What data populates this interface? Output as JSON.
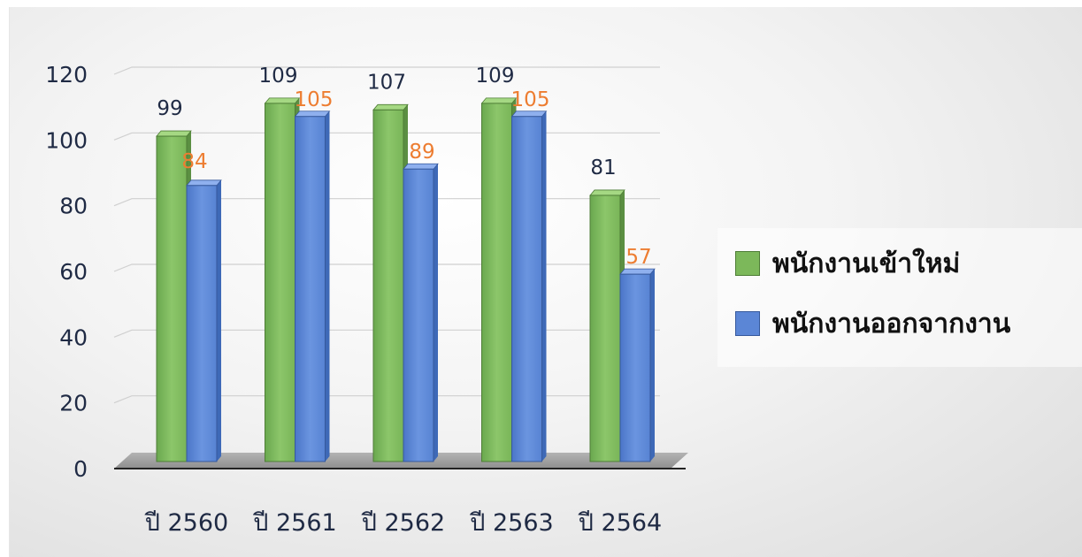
{
  "chart_data": {
    "type": "bar",
    "categories": [
      "ปี 2560",
      "ปี 2561",
      "ปี 2562",
      "ปี 2563",
      "ปี 2564"
    ],
    "series": [
      {
        "name": "พนักงานเข้าใหม่",
        "values": [
          99,
          109,
          107,
          109,
          81
        ],
        "color": "#7cb85a",
        "label_color": "#1f2a44"
      },
      {
        "name": "พนักงานออกจากงาน",
        "values": [
          84,
          105,
          89,
          105,
          57
        ],
        "color": "#5b86d6",
        "label_color": "#ed7d31"
      }
    ],
    "ylim": [
      0,
      120
    ],
    "yticks": [
      0,
      20,
      40,
      60,
      80,
      100,
      120
    ],
    "grid": true,
    "legend_position": "right",
    "title": "",
    "xlabel": "",
    "ylabel": ""
  }
}
